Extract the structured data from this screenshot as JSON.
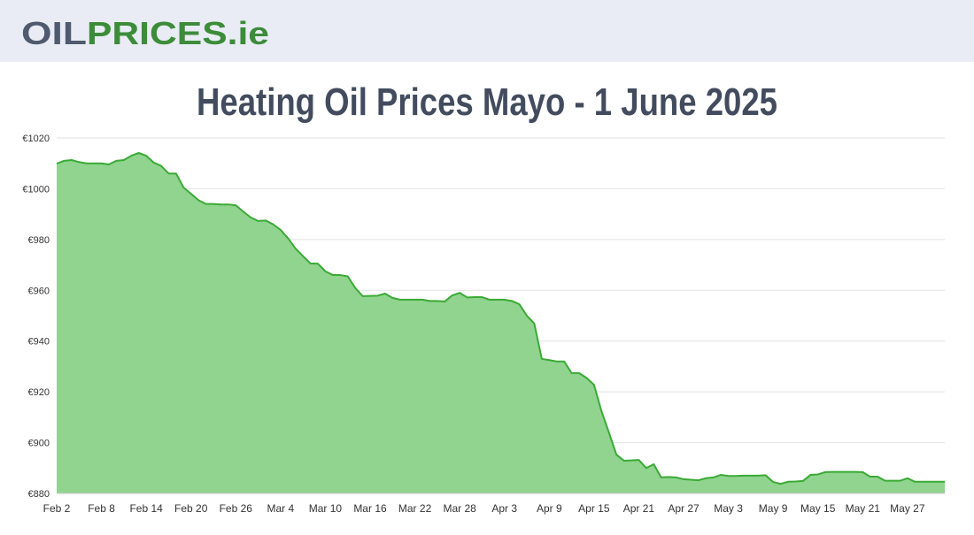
{
  "header": {
    "logo_dark": "OIL",
    "logo_green": "PRICES.ie"
  },
  "chart_data": {
    "type": "area",
    "title": "Heating Oil Prices Mayo - 1 June 2025",
    "color": "#3aaa35",
    "fill": "#90d48f",
    "grid": true,
    "ylim": [
      880,
      1020
    ],
    "yticks": [
      {
        "value": 880,
        "label": "€880"
      },
      {
        "value": 900,
        "label": "€900"
      },
      {
        "value": 920,
        "label": "€920"
      },
      {
        "value": 940,
        "label": "€940"
      },
      {
        "value": 960,
        "label": "€960"
      },
      {
        "value": 980,
        "label": "€980"
      },
      {
        "value": 1000,
        "label": "€1000"
      },
      {
        "value": 1020,
        "label": "€1020"
      }
    ],
    "categories": [
      "Feb 2",
      null,
      null,
      null,
      null,
      null,
      "Feb 8",
      null,
      null,
      null,
      null,
      null,
      "Feb 14",
      null,
      null,
      null,
      null,
      null,
      "Feb 20",
      null,
      null,
      null,
      null,
      null,
      "Feb 26",
      null,
      null,
      null,
      null,
      null,
      "Mar 4",
      null,
      null,
      null,
      null,
      null,
      "Mar 10",
      null,
      null,
      null,
      null,
      null,
      "Mar 16",
      null,
      null,
      null,
      null,
      null,
      "Mar 22",
      null,
      null,
      null,
      null,
      null,
      "Mar 28",
      null,
      null,
      null,
      null,
      null,
      "Apr 3",
      null,
      null,
      null,
      null,
      null,
      "Apr 9",
      null,
      null,
      null,
      null,
      null,
      "Apr 15",
      null,
      null,
      null,
      null,
      null,
      "Apr 21",
      null,
      null,
      null,
      null,
      null,
      "Apr 27",
      null,
      null,
      null,
      null,
      null,
      "May 3",
      null,
      null,
      null,
      null,
      null,
      "May 9",
      null,
      null,
      null,
      null,
      null,
      "May 15",
      null,
      null,
      null,
      null,
      null,
      "May 21",
      null,
      null,
      null,
      null,
      null,
      "May 27",
      null,
      null,
      null,
      null,
      null
    ],
    "values": [
      1009.9,
      1011,
      1011.3,
      1010.5,
      1010,
      1010,
      1010,
      1009.6,
      1011,
      1011.3,
      1013,
      1014.1,
      1013,
      1010.3,
      1009,
      1006,
      1006,
      1000.5,
      998,
      995.5,
      994,
      994,
      993.8,
      993.8,
      993.5,
      991,
      988.7,
      987.3,
      987.5,
      986,
      983.8,
      980.5,
      976.5,
      973.5,
      970.6,
      970.5,
      967.5,
      966,
      966,
      965.5,
      961,
      957.7,
      957.8,
      957.9,
      958.7,
      957,
      956.3,
      956.3,
      956.3,
      956.3,
      955.8,
      955.8,
      955.6,
      958,
      959,
      957.2,
      957.3,
      957.3,
      956.3,
      956.3,
      956.3,
      955.8,
      954.5,
      950,
      946.9,
      933,
      932.5,
      932,
      932,
      927.4,
      927.4,
      925.5,
      922.8,
      912.4,
      904,
      895.3,
      892.9,
      893,
      893.2,
      890,
      891.5,
      886.3,
      886.5,
      886.3,
      885.6,
      885.4,
      885.2,
      886,
      886.3,
      887.3,
      886.9,
      886.9,
      887,
      887,
      887,
      887.2,
      884.5,
      883.8,
      884.6,
      884.7,
      884.9,
      887.3,
      887.5,
      888.4,
      888.5,
      888.5,
      888.5,
      888.5,
      888.4,
      886.6,
      886.6,
      885,
      885,
      885,
      886,
      884.6,
      884.6,
      884.6,
      884.6,
      884.6
    ]
  }
}
